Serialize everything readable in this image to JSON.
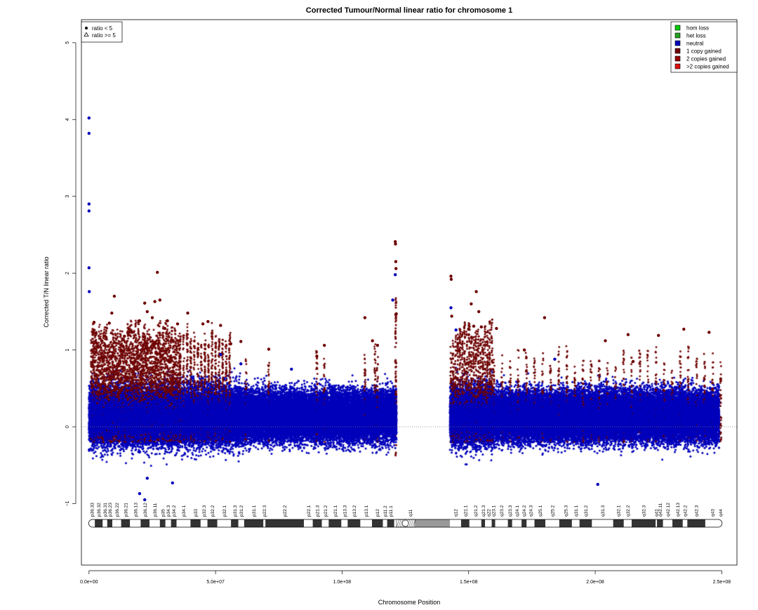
{
  "chart_data": {
    "type": "scatter",
    "title": "Corrected Tumour/Normal linear ratio for chromosome  1",
    "xlabel": "Chromosome Position",
    "ylabel": "Corrected T/N linear ratio",
    "xlim": [
      -3000000,
      256000000
    ],
    "ylim": [
      -1.8,
      5.3
    ],
    "x_ticks": [
      0,
      50000000,
      100000000,
      150000000,
      200000000,
      250000000
    ],
    "x_tick_labels": [
      "0.0e+00",
      "5.0e+07",
      "1.0e+08",
      "1.5e+08",
      "2.0e+08",
      "2.5e+08"
    ],
    "y_ticks": [
      -1,
      0,
      1,
      2,
      3,
      4,
      5
    ],
    "y_tick_labels": [
      "−1",
      "0",
      "1",
      "2",
      "3",
      "4",
      "5"
    ],
    "reference_line": 0,
    "grid": false,
    "shape_legend": {
      "placement": "top-left",
      "items": [
        {
          "label": "ratio < 5",
          "shape": "filled-circle"
        },
        {
          "label": "ratio >= 5",
          "shape": "open-triangle"
        }
      ]
    },
    "legend": {
      "placement": "top-right",
      "items": [
        {
          "label": "hom loss",
          "color": "#00cc00"
        },
        {
          "label": "het loss",
          "color": "#22a022"
        },
        {
          "label": "neutral",
          "color": "#0000bb"
        },
        {
          "label": "1 copy gained",
          "color": "#6e0000"
        },
        {
          "label": "2 copies gained",
          "color": "#990000"
        },
        {
          "label": ">2 copies gained",
          "color": "#dd1111"
        }
      ]
    },
    "series": [
      {
        "name": "neutral",
        "color": "#0000bb",
        "points": [
          [
            0,
            4.02
          ],
          [
            0,
            3.82
          ],
          [
            0,
            2.9
          ],
          [
            0,
            2.81
          ],
          [
            0,
            2.07
          ],
          [
            100000,
            1.76
          ],
          [
            20000000,
            -0.87
          ],
          [
            22000000,
            -0.95
          ],
          [
            23000000,
            -0.67
          ],
          [
            33000000,
            -0.73
          ],
          [
            201000000,
            -0.75
          ],
          [
            52000000,
            0.94
          ],
          [
            126000,
            -0.3
          ],
          [
            120000000,
            1.65
          ],
          [
            121000000,
            1.98
          ],
          [
            143000000,
            1.55
          ],
          [
            145000000,
            1.26
          ],
          [
            184000000,
            0.88
          ],
          [
            60000000,
            0.82
          ],
          [
            80000000,
            0.75
          ]
        ]
      },
      {
        "name": "1 copy gained",
        "color": "#6e0000",
        "points": [
          [
            2000000,
            1.36
          ],
          [
            5000000,
            1.12
          ],
          [
            8000000,
            1.35
          ],
          [
            9000000,
            1.48
          ],
          [
            10000000,
            1.7
          ],
          [
            14000000,
            1.18
          ],
          [
            17000000,
            1.23
          ],
          [
            20000000,
            1.38
          ],
          [
            22000000,
            1.61
          ],
          [
            23000000,
            1.5
          ],
          [
            25000000,
            1.42
          ],
          [
            26000000,
            1.63
          ],
          [
            27000000,
            2.01
          ],
          [
            28000000,
            1.65
          ],
          [
            30000000,
            1.28
          ],
          [
            31000000,
            1.38
          ],
          [
            35000000,
            1.34
          ],
          [
            39000000,
            1.48
          ],
          [
            45000000,
            1.34
          ],
          [
            47000000,
            1.37
          ],
          [
            52000000,
            1.32
          ],
          [
            56000000,
            1.08
          ],
          [
            60000000,
            1.11
          ],
          [
            71000000,
            1.01
          ],
          [
            90000000,
            0.92
          ],
          [
            93000000,
            1.06
          ],
          [
            109000000,
            1.42
          ],
          [
            112000000,
            1.12
          ],
          [
            114000000,
            1.06
          ],
          [
            121000000,
            2.41
          ],
          [
            121100000,
            2.38
          ],
          [
            121200000,
            2.15
          ],
          [
            121300000,
            2.06
          ],
          [
            121400000,
            1.47
          ],
          [
            143000000,
            1.96
          ],
          [
            143100000,
            1.92
          ],
          [
            143300000,
            1.44
          ],
          [
            150000000,
            1.27
          ],
          [
            151000000,
            1.6
          ],
          [
            152000000,
            1.31
          ],
          [
            153000000,
            1.76
          ],
          [
            154000000,
            1.5
          ],
          [
            155000000,
            1.3
          ],
          [
            161000000,
            1.28
          ],
          [
            172000000,
            1.0
          ],
          [
            180000000,
            1.42
          ],
          [
            204000000,
            1.12
          ],
          [
            213000000,
            1.2
          ],
          [
            225000000,
            1.19
          ],
          [
            235000000,
            1.27
          ],
          [
            245000000,
            1.23
          ],
          [
            215000000,
            0.85
          ]
        ]
      }
    ],
    "ideogram": {
      "bands": [
        {
          "name": "p36.33",
          "start": 0,
          "end": 2300000,
          "stain": "gneg"
        },
        {
          "name": "p36.32",
          "start": 2300000,
          "end": 5400000,
          "stain": "gpos"
        },
        {
          "name": "p36.31",
          "start": 5400000,
          "end": 7200000,
          "stain": "gneg"
        },
        {
          "name": "p36.23",
          "start": 7200000,
          "end": 9200000,
          "stain": "gpos"
        },
        {
          "name": "p36.22",
          "start": 9200000,
          "end": 12700000,
          "stain": "gneg"
        },
        {
          "name": "p36.21",
          "start": 12700000,
          "end": 16200000,
          "stain": "gpos"
        },
        {
          "name": "p36.13",
          "start": 16200000,
          "end": 20400000,
          "stain": "gneg"
        },
        {
          "name": "p36.12",
          "start": 20400000,
          "end": 23900000,
          "stain": "gpos"
        },
        {
          "name": "p36.11",
          "start": 23900000,
          "end": 28000000,
          "stain": "gneg"
        },
        {
          "name": "p35",
          "start": 28000000,
          "end": 30200000,
          "stain": "gpos"
        },
        {
          "name": "p34.3",
          "start": 30200000,
          "end": 32400000,
          "stain": "gneg"
        },
        {
          "name": "p34.2",
          "start": 32400000,
          "end": 34600000,
          "stain": "gpos"
        },
        {
          "name": "p34.1",
          "start": 34600000,
          "end": 40100000,
          "stain": "gneg"
        },
        {
          "name": "p33",
          "start": 40100000,
          "end": 44100000,
          "stain": "gpos"
        },
        {
          "name": "p32.3",
          "start": 44100000,
          "end": 46800000,
          "stain": "gneg"
        },
        {
          "name": "p32.2",
          "start": 46800000,
          "end": 50700000,
          "stain": "gpos"
        },
        {
          "name": "p32.1",
          "start": 50700000,
          "end": 56100000,
          "stain": "gneg"
        },
        {
          "name": "p31.3",
          "start": 56100000,
          "end": 59000000,
          "stain": "gpos"
        },
        {
          "name": "p31.2",
          "start": 59000000,
          "end": 61300000,
          "stain": "gneg"
        },
        {
          "name": "p31.1",
          "start": 61300000,
          "end": 68900000,
          "stain": "gpos"
        },
        {
          "name": "p22.3",
          "start": 68900000,
          "end": 69700000,
          "stain": "gneg"
        },
        {
          "name": "p22.2",
          "start": 69700000,
          "end": 84900000,
          "stain": "gpos"
        },
        {
          "name": "p22.1",
          "start": 84900000,
          "end": 88400000,
          "stain": "gneg"
        },
        {
          "name": "p21.3",
          "start": 88400000,
          "end": 92000000,
          "stain": "gpos"
        },
        {
          "name": "p21.2",
          "start": 92000000,
          "end": 94700000,
          "stain": "gneg"
        },
        {
          "name": "p21.1",
          "start": 94700000,
          "end": 99700000,
          "stain": "gpos"
        },
        {
          "name": "p13.3",
          "start": 99700000,
          "end": 102200000,
          "stain": "gneg"
        },
        {
          "name": "p13.2",
          "start": 102200000,
          "end": 107200000,
          "stain": "gpos"
        },
        {
          "name": "p13.1",
          "start": 107200000,
          "end": 111800000,
          "stain": "gneg"
        },
        {
          "name": "p12",
          "start": 111800000,
          "end": 116100000,
          "stain": "gpos"
        },
        {
          "name": "p11.2",
          "start": 116100000,
          "end": 117800000,
          "stain": "gneg"
        },
        {
          "name": "p11.1",
          "start": 117800000,
          "end": 120600000,
          "stain": "gpos"
        },
        {
          "name": "",
          "start": 120600000,
          "end": 121500000,
          "stain": "stalk"
        },
        {
          "name": "",
          "start": 121500000,
          "end": 125000000,
          "stain": "acen"
        },
        {
          "name": "q11",
          "start": 125000000,
          "end": 128900000,
          "stain": "acen"
        },
        {
          "name": "",
          "start": 128900000,
          "end": 142600000,
          "stain": "gvar"
        },
        {
          "name": "q12",
          "start": 142600000,
          "end": 147000000,
          "stain": "gneg"
        },
        {
          "name": "q21.1",
          "start": 147000000,
          "end": 150300000,
          "stain": "gpos"
        },
        {
          "name": "q21.2",
          "start": 150300000,
          "end": 155000000,
          "stain": "gneg"
        },
        {
          "name": "q21.3",
          "start": 155000000,
          "end": 156500000,
          "stain": "gpos"
        },
        {
          "name": "q22",
          "start": 156500000,
          "end": 159100000,
          "stain": "gneg"
        },
        {
          "name": "q23.1",
          "start": 159100000,
          "end": 160500000,
          "stain": "gpos"
        },
        {
          "name": "q23.2",
          "start": 160500000,
          "end": 165500000,
          "stain": "gneg"
        },
        {
          "name": "q23.3",
          "start": 165500000,
          "end": 167200000,
          "stain": "gpos"
        },
        {
          "name": "q24.1",
          "start": 167200000,
          "end": 170900000,
          "stain": "gneg"
        },
        {
          "name": "q24.2",
          "start": 170900000,
          "end": 172900000,
          "stain": "gpos"
        },
        {
          "name": "q24.3",
          "start": 172900000,
          "end": 176000000,
          "stain": "gneg"
        },
        {
          "name": "q25.1",
          "start": 176000000,
          "end": 180300000,
          "stain": "gpos"
        },
        {
          "name": "q25.2",
          "start": 180300000,
          "end": 185800000,
          "stain": "gneg"
        },
        {
          "name": "q25.3",
          "start": 185800000,
          "end": 190800000,
          "stain": "gpos"
        },
        {
          "name": "q31.1",
          "start": 190800000,
          "end": 193800000,
          "stain": "gneg"
        },
        {
          "name": "q31.2",
          "start": 193800000,
          "end": 198700000,
          "stain": "gpos"
        },
        {
          "name": "q31.3",
          "start": 198700000,
          "end": 207100000,
          "stain": "gneg"
        },
        {
          "name": "q32.1",
          "start": 207100000,
          "end": 211300000,
          "stain": "gpos"
        },
        {
          "name": "q32.2",
          "start": 211300000,
          "end": 214400000,
          "stain": "gneg"
        },
        {
          "name": "q32.3",
          "start": 214400000,
          "end": 223900000,
          "stain": "gpos"
        },
        {
          "name": "q41",
          "start": 223900000,
          "end": 224400000,
          "stain": "gneg"
        },
        {
          "name": "q42.11",
          "start": 224400000,
          "end": 226800000,
          "stain": "gpos"
        },
        {
          "name": "q42.12",
          "start": 226800000,
          "end": 230500000,
          "stain": "gneg"
        },
        {
          "name": "q42.13",
          "start": 230500000,
          "end": 234600000,
          "stain": "gpos"
        },
        {
          "name": "q42.2",
          "start": 234600000,
          "end": 236400000,
          "stain": "gneg"
        },
        {
          "name": "q42.3",
          "start": 236400000,
          "end": 243500000,
          "stain": "gpos"
        },
        {
          "name": "q43",
          "start": 243500000,
          "end": 249000000,
          "stain": "gneg"
        },
        {
          "name": "q44",
          "start": 249000000,
          "end": 250000000,
          "stain": "gneg"
        }
      ]
    }
  }
}
